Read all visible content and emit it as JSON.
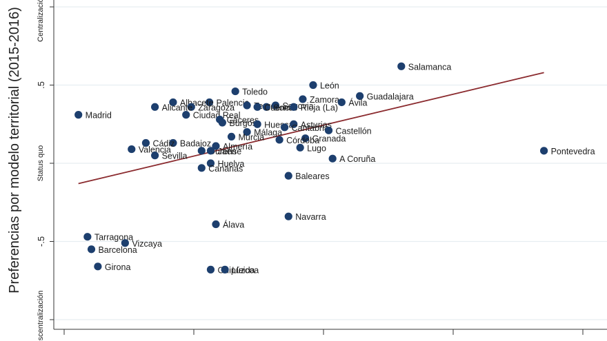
{
  "chart_data": {
    "type": "scatter",
    "title": "",
    "ylabel": "Preferencias por modelo territorial (2015-2016)",
    "xlabel": "",
    "ylim": [
      -1,
      1
    ],
    "yticks": [
      -0.5,
      0,
      0.5
    ],
    "ytick_labels": [
      "-.5",
      "Status quo",
      ".5"
    ],
    "ytick_extremes": [
      "Descentralización",
      "Centralización"
    ],
    "xlim": [
      0,
      4
    ],
    "grid": true,
    "legend": "none",
    "points": [
      {
        "label": "Salamanca",
        "x": 2.6,
        "y": 0.62
      },
      {
        "label": "León",
        "x": 1.92,
        "y": 0.5
      },
      {
        "label": "Toledo",
        "x": 1.32,
        "y": 0.46
      },
      {
        "label": "Guadalajara",
        "x": 2.28,
        "y": 0.43
      },
      {
        "label": "Zamora",
        "x": 1.84,
        "y": 0.41
      },
      {
        "label": "Ávila",
        "x": 2.14,
        "y": 0.39
      },
      {
        "label": "Palencia",
        "x": 1.12,
        "y": 0.39
      },
      {
        "label": "Albacete",
        "x": 0.84,
        "y": 0.39
      },
      {
        "label": "Teruel",
        "x": 1.41,
        "y": 0.37
      },
      {
        "label": "Segovia",
        "x": 1.63,
        "y": 0.37
      },
      {
        "label": "Soria",
        "x": 1.56,
        "y": 0.36
      },
      {
        "label": "Cuenca",
        "x": 1.49,
        "y": 0.36
      },
      {
        "label": "Rioja (La)",
        "x": 1.77,
        "y": 0.36
      },
      {
        "label": "Zaragoza",
        "x": 0.98,
        "y": 0.36
      },
      {
        "label": "Alicante",
        "x": 0.7,
        "y": 0.36
      },
      {
        "label": "Madrid",
        "x": 0.11,
        "y": 0.31
      },
      {
        "label": "Ciudad Real",
        "x": 0.94,
        "y": 0.31
      },
      {
        "label": "Cáceres",
        "x": 1.2,
        "y": 0.28
      },
      {
        "label": "Burgos",
        "x": 1.22,
        "y": 0.26
      },
      {
        "label": "Huesca",
        "x": 1.49,
        "y": 0.25
      },
      {
        "label": "Asturias",
        "x": 1.77,
        "y": 0.25
      },
      {
        "label": "Cantabria",
        "x": 1.7,
        "y": 0.23
      },
      {
        "label": "Castellón",
        "x": 2.04,
        "y": 0.21
      },
      {
        "label": "Málaga",
        "x": 1.41,
        "y": 0.2
      },
      {
        "label": "Murcia",
        "x": 1.29,
        "y": 0.17
      },
      {
        "label": "Granada",
        "x": 1.86,
        "y": 0.16
      },
      {
        "label": "Córdoba",
        "x": 1.66,
        "y": 0.15
      },
      {
        "label": "Badajoz",
        "x": 0.84,
        "y": 0.13
      },
      {
        "label": "Cádiz",
        "x": 0.63,
        "y": 0.13
      },
      {
        "label": "Almería",
        "x": 1.17,
        "y": 0.11
      },
      {
        "label": "Lugo",
        "x": 1.82,
        "y": 0.1
      },
      {
        "label": "Valencia",
        "x": 0.52,
        "y": 0.09
      },
      {
        "label": "Ourense",
        "x": 1.06,
        "y": 0.08
      },
      {
        "label": "Jaén",
        "x": 1.13,
        "y": 0.08
      },
      {
        "label": "Sevilla",
        "x": 0.7,
        "y": 0.05
      },
      {
        "label": "A Coruña",
        "x": 2.07,
        "y": 0.03
      },
      {
        "label": "Pontevedra",
        "x": 3.7,
        "y": 0.08
      },
      {
        "label": "Huelva",
        "x": 1.13,
        "y": 0.0
      },
      {
        "label": "Canarias",
        "x": 1.06,
        "y": -0.03
      },
      {
        "label": "Baleares",
        "x": 1.73,
        "y": -0.08
      },
      {
        "label": "Navarra",
        "x": 1.73,
        "y": -0.34
      },
      {
        "label": "Álava",
        "x": 1.17,
        "y": -0.39
      },
      {
        "label": "Tarragona",
        "x": 0.18,
        "y": -0.47
      },
      {
        "label": "Vizcaya",
        "x": 0.47,
        "y": -0.51
      },
      {
        "label": "Barcelona",
        "x": 0.21,
        "y": -0.55
      },
      {
        "label": "Girona",
        "x": 0.26,
        "y": -0.66
      },
      {
        "label": "Guipúzcoa",
        "x": 1.13,
        "y": -0.68
      },
      {
        "label": "Lleida",
        "x": 1.24,
        "y": -0.68
      }
    ],
    "fit_line": {
      "x": [
        0.11,
        3.7
      ],
      "y": [
        -0.13,
        0.58
      ],
      "color": "#8b2b2f"
    },
    "marker_color": "#1d3f6e"
  }
}
